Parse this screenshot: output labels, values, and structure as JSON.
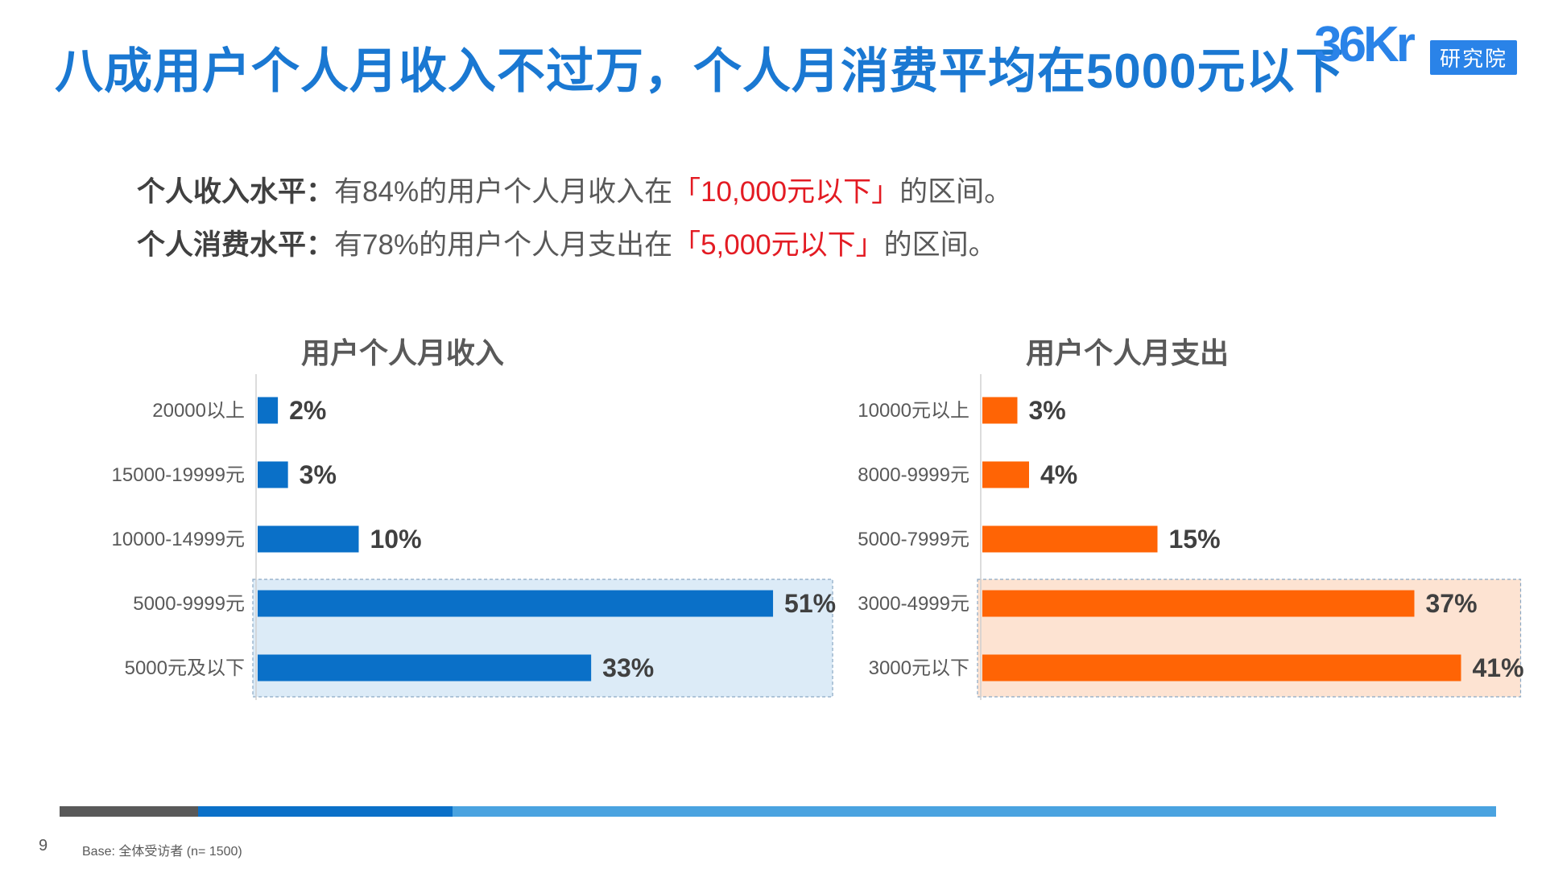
{
  "page": {
    "title": "八成用户个人月收入不过万，个人月消费平均在5000元以下",
    "logo": {
      "mark": "36Kr",
      "sub": "研究院"
    },
    "summary": [
      {
        "label": "个人收入水平：",
        "before": "有84%的用户个人月收入在",
        "highlight": "「10,000元以下」",
        "after": "的区间。"
      },
      {
        "label": "个人消费水平：",
        "before": "有78%的用户个人月支出在",
        "highlight": "「5,000元以下」",
        "after": "的区间。"
      }
    ],
    "footer": {
      "page_number": "9",
      "base_note": "Base: 全体受访者 (n= 1500)"
    },
    "colors": {
      "title": "#1a78d2",
      "income_bar": "#0a70c8",
      "expense_bar": "#ff6405",
      "highlight_text": "#e31b23",
      "footer_segments": [
        "#595959",
        "#0a70c8",
        "#4aa3e0"
      ]
    }
  },
  "chart_data": [
    {
      "type": "bar",
      "orientation": "horizontal",
      "title": "用户个人月收入",
      "categories": [
        "20000以上",
        "15000-19999元",
        "10000-14999元",
        "5000-9999元",
        "5000元及以下"
      ],
      "values": [
        2,
        3,
        10,
        51,
        33
      ],
      "value_labels": [
        "2%",
        "3%",
        "10%",
        "51%",
        "33%"
      ],
      "unit": "%",
      "highlighted_categories": [
        "5000-9999元",
        "5000元及以下"
      ],
      "color": "#0a70c8",
      "highlight_fill": "#dcebf7"
    },
    {
      "type": "bar",
      "orientation": "horizontal",
      "title": "用户个人月支出",
      "categories": [
        "10000元以上",
        "8000-9999元",
        "5000-7999元",
        "3000-4999元",
        "3000元以下"
      ],
      "values": [
        3,
        4,
        15,
        37,
        41
      ],
      "value_labels": [
        "3%",
        "4%",
        "15%",
        "37%",
        "41%"
      ],
      "unit": "%",
      "highlighted_categories": [
        "3000-4999元",
        "3000元以下"
      ],
      "color": "#ff6405",
      "highlight_fill": "#fde3d2"
    }
  ]
}
